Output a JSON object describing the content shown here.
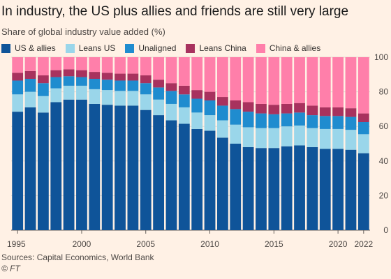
{
  "title": "In industry, the US plus allies and friends are still very large",
  "subtitle": "Share of global industry value added (%)",
  "source": "Sources: Capital Economics, World Bank",
  "copyright": "© FT",
  "chart_data": {
    "type": "bar",
    "stacked": true,
    "categories": [
      "1995",
      "1996",
      "1997",
      "1998",
      "1999",
      "2000",
      "2001",
      "2002",
      "2003",
      "2004",
      "2005",
      "2006",
      "2007",
      "2008",
      "2009",
      "2010",
      "2011",
      "2012",
      "2013",
      "2014",
      "2015",
      "2016",
      "2017",
      "2018",
      "2019",
      "2020",
      "2021",
      "2022"
    ],
    "x_tick_labels": [
      "1995",
      "2000",
      "2005",
      "2010",
      "2015",
      "2020",
      "2022"
    ],
    "ylim": [
      0,
      100
    ],
    "y_ticks": [
      0,
      20,
      40,
      60,
      80,
      100
    ],
    "grid": true,
    "legend_position": "top-left",
    "series": [
      {
        "name": "US & allies",
        "color": "#0f5499",
        "values": [
          68.5,
          71,
          68,
          74,
          75.5,
          75.5,
          73,
          72.5,
          72,
          72,
          69.5,
          66.5,
          63.5,
          61.5,
          58.5,
          57.5,
          53.5,
          50,
          48,
          47.5,
          47.5,
          48.5,
          49,
          48,
          47,
          47,
          46.5,
          44.5
        ]
      },
      {
        "name": "Leans US",
        "color": "#9ad6ea",
        "values": [
          10,
          9,
          9.5,
          8,
          8,
          8,
          8.5,
          8.5,
          8.5,
          8.5,
          9,
          9,
          9.5,
          9.5,
          9.5,
          9,
          10,
          11,
          11.5,
          11.5,
          11.5,
          11.5,
          11.5,
          11,
          11.5,
          11.5,
          11.5,
          11
        ]
      },
      {
        "name": "Unaligned",
        "color": "#1f8ccf",
        "values": [
          8,
          7.5,
          7.5,
          6.5,
          5.5,
          5,
          6,
          6,
          6,
          6,
          6.5,
          7,
          7.5,
          7.5,
          8,
          8.5,
          8.5,
          9,
          9,
          8.5,
          8,
          7.5,
          7.5,
          7.5,
          7.5,
          7.5,
          7.5,
          7
        ]
      },
      {
        "name": "Leans China",
        "color": "#a8325e",
        "values": [
          4.5,
          4.5,
          4.5,
          4,
          4,
          4,
          4,
          4,
          4,
          4,
          4.5,
          4.5,
          4.5,
          5,
          5,
          5,
          5,
          5,
          5.5,
          5.5,
          5.5,
          5.5,
          5.5,
          5.5,
          5,
          5,
          5,
          5
        ]
      },
      {
        "name": "China & allies",
        "color": "#ff7faa",
        "values": [
          9,
          8,
          10.5,
          7.5,
          7,
          7.5,
          8.5,
          9,
          9.5,
          9.5,
          10.5,
          13,
          15,
          16.5,
          19,
          20,
          23,
          25,
          26,
          27,
          27.5,
          27,
          26.5,
          28,
          29,
          29,
          29.5,
          32.5
        ]
      }
    ]
  }
}
